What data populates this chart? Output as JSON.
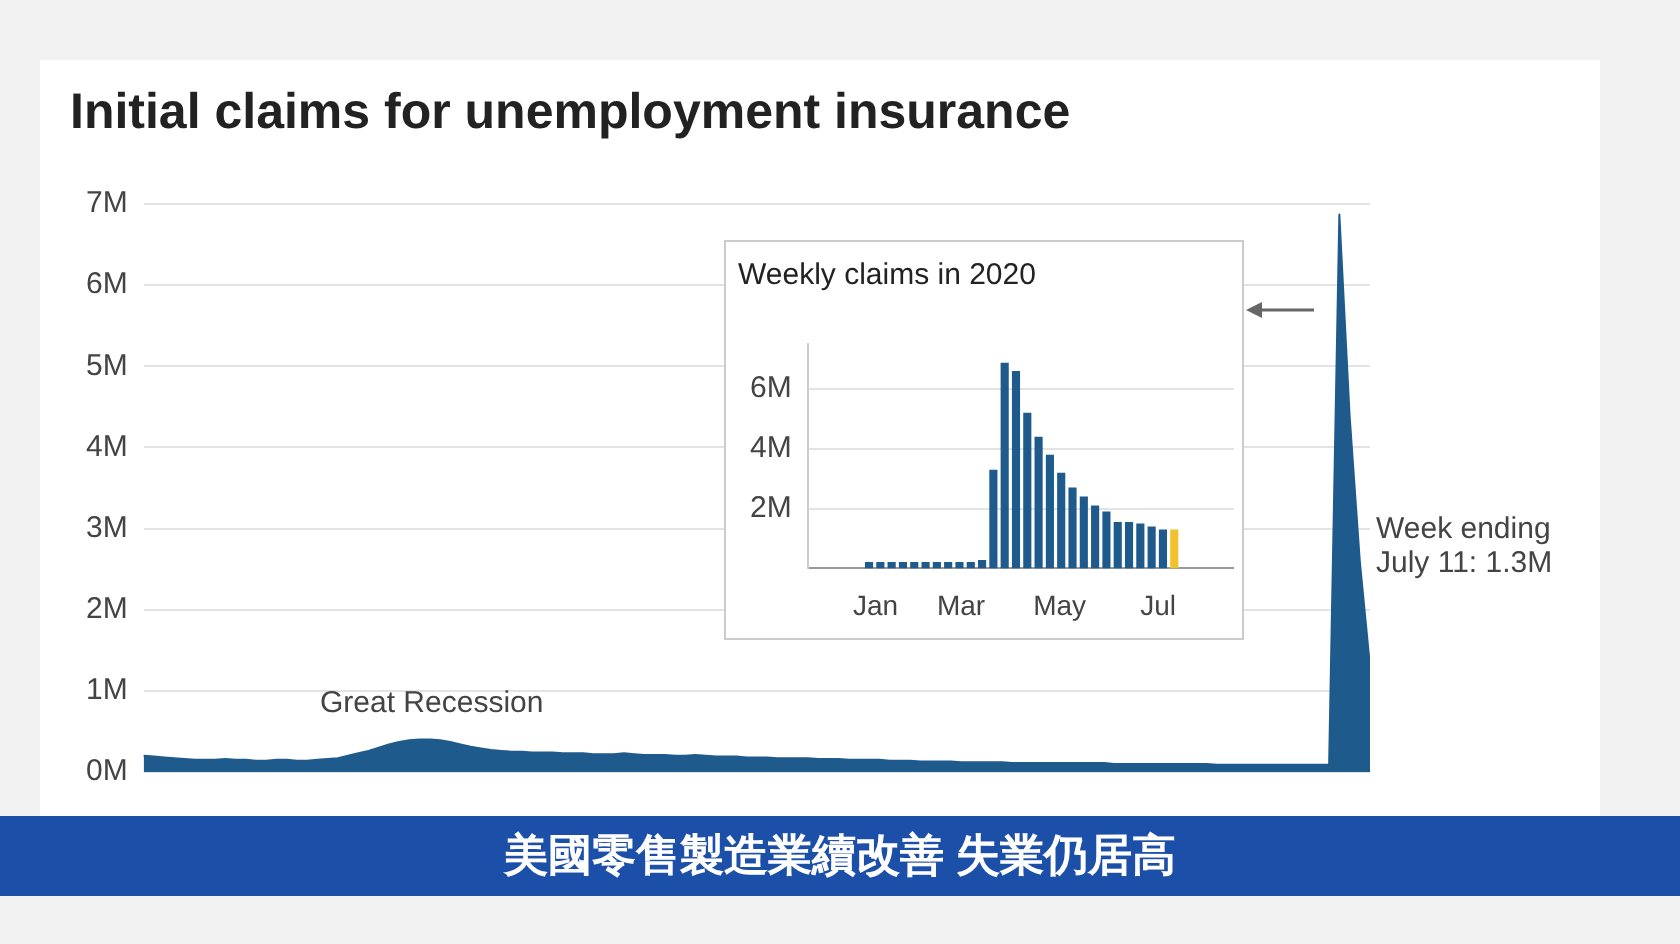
{
  "chart_data": [
    {
      "type": "area",
      "title": "Initial claims for unemployment insurance",
      "annotations": [
        "Great Recession",
        "Week ending July 11: 1.3M",
        "美國零售製造業續改善 失業仍居高"
      ],
      "categories": [
        null,
        null,
        null,
        null,
        null,
        null,
        null,
        null,
        null,
        null,
        null,
        null,
        null,
        null,
        null,
        null,
        null,
        null,
        null,
        null,
        null,
        null,
        null,
        null,
        null,
        null,
        null,
        null,
        null,
        null,
        null,
        null,
        null,
        null,
        null,
        null,
        null,
        null,
        null,
        null,
        null,
        null,
        null,
        null,
        null,
        null,
        null,
        null,
        null,
        null,
        null,
        null,
        null,
        null,
        null,
        null,
        null,
        null,
        null,
        null,
        null,
        null,
        null,
        null,
        null,
        null,
        null,
        null,
        null,
        null,
        null,
        null,
        null,
        null,
        null,
        null,
        null,
        null,
        null,
        null,
        null,
        null,
        null,
        null,
        null,
        null,
        null,
        null,
        null,
        null,
        null,
        null,
        null,
        null,
        null,
        null,
        null,
        null,
        null,
        null,
        null,
        null,
        null,
        null,
        null,
        null,
        null,
        null,
        null,
        null,
        null,
        null,
        null,
        null,
        null,
        null,
        null,
        null,
        null,
        null,
        null
      ],
      "color": "#1f5a8c",
      "values": [
        200000,
        190000,
        180000,
        170000,
        160000,
        150000,
        150000,
        150000,
        160000,
        150000,
        150000,
        140000,
        140000,
        150000,
        150000,
        140000,
        140000,
        150000,
        160000,
        170000,
        200000,
        230000,
        260000,
        300000,
        340000,
        370000,
        390000,
        400000,
        400000,
        390000,
        370000,
        340000,
        310000,
        290000,
        270000,
        260000,
        250000,
        250000,
        240000,
        240000,
        240000,
        230000,
        230000,
        230000,
        220000,
        220000,
        220000,
        230000,
        220000,
        210000,
        210000,
        210000,
        200000,
        200000,
        210000,
        200000,
        190000,
        190000,
        190000,
        180000,
        180000,
        180000,
        170000,
        170000,
        170000,
        170000,
        160000,
        160000,
        160000,
        150000,
        150000,
        150000,
        150000,
        140000,
        140000,
        140000,
        130000,
        130000,
        130000,
        130000,
        120000,
        120000,
        120000,
        120000,
        120000,
        110000,
        110000,
        110000,
        110000,
        110000,
        110000,
        110000,
        110000,
        110000,
        110000,
        100000,
        100000,
        100000,
        100000,
        100000,
        100000,
        100000,
        100000,
        100000,
        100000,
        90000,
        90000,
        90000,
        90000,
        90000,
        90000,
        90000,
        90000,
        90000,
        90000,
        90000,
        90000,
        6870000,
        4400000,
        2600000,
        1300000
      ],
      "ylim": [
        0,
        7000000
      ],
      "yticks": [
        {
          "value": 0,
          "label": "0M"
        },
        {
          "value": 1000000,
          "label": "1M"
        },
        {
          "value": 2000000,
          "label": "2M"
        },
        {
          "value": 3000000,
          "label": "3M"
        },
        {
          "value": 4000000,
          "label": "4M"
        },
        {
          "value": 5000000,
          "label": "5M"
        },
        {
          "value": 6000000,
          "label": "6M"
        },
        {
          "value": 7000000,
          "label": "7M"
        }
      ],
      "grid": "y",
      "tick_labels": "y"
    },
    {
      "type": "bar",
      "title": "Weekly claims in 2020",
      "x": [
        "2020-01-04",
        "2020-01-11",
        "2020-01-18",
        "2020-01-25",
        "2020-02-01",
        "2020-02-08",
        "2020-02-15",
        "2020-02-22",
        "2020-02-29",
        "2020-03-07",
        "2020-03-14",
        "2020-03-21",
        "2020-03-28",
        "2020-04-04",
        "2020-04-11",
        "2020-04-18",
        "2020-04-25",
        "2020-05-02",
        "2020-05-09",
        "2020-05-16",
        "2020-05-23",
        "2020-05-30",
        "2020-06-06",
        "2020-06-13",
        "2020-06-20",
        "2020-06-27",
        "2020-07-04",
        "2020-07-11"
      ],
      "values": [
        210000,
        210000,
        210000,
        210000,
        210000,
        210000,
        210000,
        210000,
        210000,
        210000,
        280000,
        3300000,
        6870000,
        6600000,
        5200000,
        4400000,
        3800000,
        3200000,
        2700000,
        2400000,
        2100000,
        1900000,
        1550000,
        1550000,
        1500000,
        1400000,
        1300000,
        1300000
      ],
      "colors": [
        "#1f5a8c",
        "#1f5a8c",
        "#1f5a8c",
        "#1f5a8c",
        "#1f5a8c",
        "#1f5a8c",
        "#1f5a8c",
        "#1f5a8c",
        "#1f5a8c",
        "#1f5a8c",
        "#1f5a8c",
        "#1f5a8c",
        "#1f5a8c",
        "#1f5a8c",
        "#1f5a8c",
        "#1f5a8c",
        "#1f5a8c",
        "#1f5a8c",
        "#1f5a8c",
        "#1f5a8c",
        "#1f5a8c",
        "#1f5a8c",
        "#1f5a8c",
        "#1f5a8c",
        "#1f5a8c",
        "#1f5a8c",
        "#1f5a8c",
        "#f2c12e"
      ],
      "xlim": [
        "2019-12-30",
        "2020-07-15"
      ],
      "xticks": [
        {
          "value": "2020-01-08",
          "label": "Jan"
        },
        {
          "value": "2020-03-01",
          "label": "Mar"
        },
        {
          "value": "2020-05-01",
          "label": "May"
        },
        {
          "value": "2020-07-01",
          "label": "Jul"
        }
      ],
      "ylim": [
        0,
        7500000
      ],
      "yticks": [
        {
          "value": 2000000,
          "label": "2M"
        },
        {
          "value": 4000000,
          "label": "4M"
        },
        {
          "value": 6000000,
          "label": "6M"
        }
      ],
      "grid": "y"
    }
  ]
}
